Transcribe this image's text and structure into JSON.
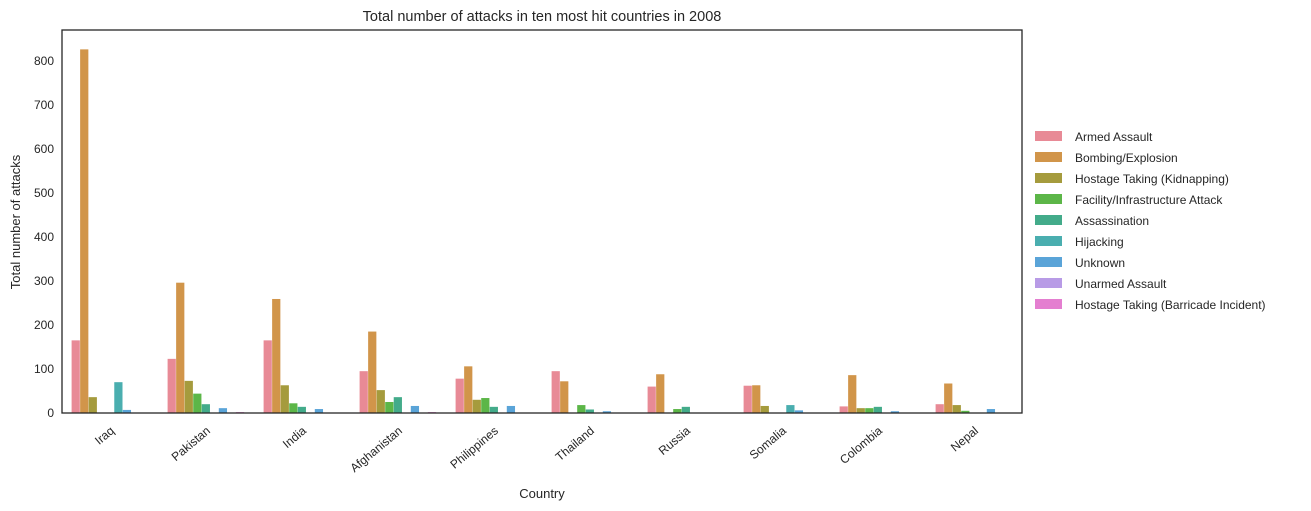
{
  "chart_data": {
    "type": "bar",
    "title": "Total number of attacks in ten most hit countries in 2008",
    "xlabel": "Country",
    "ylabel": "Total number of attacks",
    "ylim": [
      0,
      870
    ],
    "yticks": [
      0,
      100,
      200,
      300,
      400,
      500,
      600,
      700,
      800
    ],
    "grid": false,
    "legend_position": "right",
    "categories": [
      "Iraq",
      "Pakistan",
      "India",
      "Afghanistan",
      "Philippines",
      "Thailand",
      "Russia",
      "Somalia",
      "Colombia",
      "Nepal"
    ],
    "series": [
      {
        "name": "Armed Assault",
        "color": "#e88a96",
        "values": [
          165,
          123,
          165,
          95,
          78,
          95,
          60,
          62,
          15,
          20
        ]
      },
      {
        "name": "Bombing/Explosion",
        "color": "#d1954a",
        "values": [
          826,
          296,
          259,
          185,
          106,
          72,
          88,
          63,
          86,
          67
        ]
      },
      {
        "name": "Hostage Taking (Kidnapping)",
        "color": "#a59b3d",
        "values": [
          36,
          73,
          63,
          52,
          30,
          0,
          0,
          16,
          11,
          18
        ]
      },
      {
        "name": "Facility/Infrastructure Attack",
        "color": "#5cb648",
        "values": [
          0,
          44,
          22,
          25,
          34,
          18,
          9,
          0,
          11,
          5
        ]
      },
      {
        "name": "Assassination",
        "color": "#43ab8a",
        "values": [
          0,
          20,
          14,
          36,
          14,
          8,
          14,
          0,
          14,
          0
        ]
      },
      {
        "name": "Hijacking",
        "color": "#4aaeaf",
        "values": [
          70,
          0,
          0,
          0,
          0,
          0,
          0,
          18,
          0,
          0
        ]
      },
      {
        "name": "Unknown",
        "color": "#5aa4d8",
        "values": [
          7,
          11,
          9,
          16,
          16,
          4,
          0,
          6,
          4,
          9
        ]
      },
      {
        "name": "Unarmed Assault",
        "color": "#b89be6",
        "values": [
          0,
          0,
          0,
          0,
          0,
          0,
          0,
          0,
          0,
          0
        ]
      },
      {
        "name": "Hostage Taking (Barricade Incident)",
        "color": "#e47ed0",
        "values": [
          0,
          2,
          0,
          2,
          0,
          0,
          0,
          0,
          0,
          0
        ]
      }
    ]
  }
}
